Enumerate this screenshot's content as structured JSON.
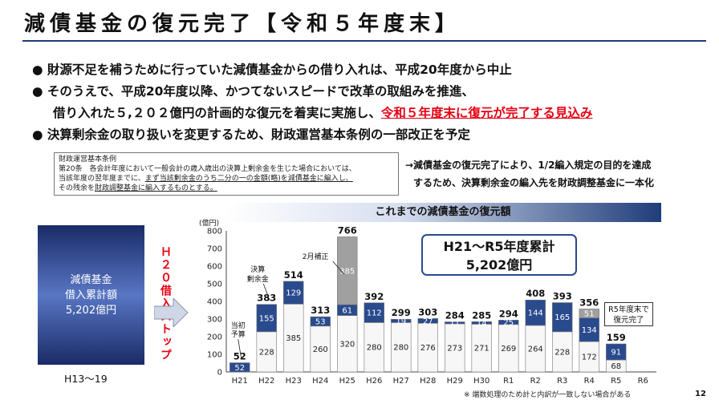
{
  "title": "減債基金の復元完了【令和５年度末】",
  "bullets": {
    "line1": "● 財源不足を補うために行っていた減債基金からの借り入れは、平成20年度から中止",
    "line2": "● そのうえで、平成20年度以降、かつてないスピードで改革の取組みを推進、",
    "line3_plain": "借り入れた５,２０２億円の計画的な復元を着実に実施し、",
    "line3_red": "令和５年度末に復元が完了する見込み",
    "line4": "● 決算剰余金の取り扱いを変更するため、財政運営基本条例の一部改正を予定"
  },
  "law_box": {
    "l1": "財政運営基本条例",
    "l2": "第20条　各会計年度において一般会計の歳入歳出の決算上剰余金を生じた場合においては、",
    "l3a": "当該年度の翌年度までに、",
    "l3b": "まず当該剰余金のうち二分の一の金額(略)を減債基金に編入し、",
    "l4a": "その残余を",
    "l4b": "財政調整基金に編入するものとする。"
  },
  "right_note": {
    "l1": "→減債基金の復元完了により、1/2編入規定の目的を達成",
    "l2": "するため、決算剰余金の編入先を財政調整基金に一本化"
  },
  "chart_header": "これまでの減債基金の復元額",
  "left_box": {
    "l1": "減債基金",
    "l2": "借入累計額",
    "l3": "5,202億円",
    "period": "H13～19"
  },
  "stop_label": "Ｈ２０借入ストップ",
  "sum_box": {
    "l1": "H21～R5年度累計",
    "l2": "5,202億円"
  },
  "r5_box": {
    "l1": "R5年度末で",
    "l2": "復元完了"
  },
  "footnote": "※ 端数処理のため計と内訳が一致しない場合がある",
  "page_number": "12",
  "colors": {
    "accent": "#2a4a8e",
    "dark": "#1f3d7a",
    "red": "#e60012",
    "gray": "#a0a0a0",
    "white_seg": "#f7f7f7"
  },
  "chart_data": {
    "type": "bar",
    "stacked": true,
    "unit_label": "(億円)",
    "ylim": [
      0,
      800
    ],
    "yticks": [
      0,
      100,
      200,
      300,
      400,
      500,
      600,
      700,
      800
    ],
    "grid": false,
    "categories": [
      "H21",
      "H22",
      "H23",
      "H24",
      "H25",
      "H26",
      "H27",
      "H28",
      "H29",
      "H30",
      "R1",
      "R2",
      "R3",
      "R4",
      "R5",
      "R6"
    ],
    "segments": [
      [
        {
          "v": 52,
          "c": "blue"
        }
      ],
      [
        {
          "v": 228,
          "c": "white"
        },
        {
          "v": 155,
          "c": "blue"
        }
      ],
      [
        {
          "v": 385,
          "c": "white"
        },
        {
          "v": 129,
          "c": "blue"
        }
      ],
      [
        {
          "v": 260,
          "c": "white"
        },
        {
          "v": 53,
          "c": "blue"
        }
      ],
      [
        {
          "v": 320,
          "c": "white"
        },
        {
          "v": 61,
          "c": "blue"
        },
        {
          "v": 385,
          "c": "gray"
        }
      ],
      [
        {
          "v": 280,
          "c": "white"
        },
        {
          "v": 112,
          "c": "blue"
        }
      ],
      [
        {
          "v": 280,
          "c": "white"
        },
        {
          "v": 19,
          "c": "blue"
        }
      ],
      [
        {
          "v": 276,
          "c": "white"
        },
        {
          "v": 27,
          "c": "blue"
        }
      ],
      [
        {
          "v": 273,
          "c": "white"
        },
        {
          "v": 11,
          "c": "blue"
        }
      ],
      [
        {
          "v": 271,
          "c": "white"
        },
        {
          "v": 14,
          "c": "blue"
        }
      ],
      [
        {
          "v": 269,
          "c": "white"
        },
        {
          "v": 25,
          "c": "blue"
        }
      ],
      [
        {
          "v": 264,
          "c": "white"
        },
        {
          "v": 144,
          "c": "blue"
        }
      ],
      [
        {
          "v": 228,
          "c": "white"
        },
        {
          "v": 165,
          "c": "blue"
        }
      ],
      [
        {
          "v": 172,
          "c": "white"
        },
        {
          "v": 134,
          "c": "blue"
        },
        {
          "v": 51,
          "c": "gray"
        }
      ],
      [
        {
          "v": 68,
          "c": "white"
        },
        {
          "v": 91,
          "c": "blue"
        }
      ],
      []
    ],
    "totals": [
      "52",
      "383",
      "514",
      "313",
      "766",
      "392",
      "299",
      "303",
      "284",
      "285",
      "294",
      "408",
      "393",
      "356",
      "159",
      ""
    ],
    "annotations": [
      {
        "text": "当初予算",
        "category": "H21"
      },
      {
        "text": "決算剰余金",
        "category": "H22"
      },
      {
        "text": "2月補正",
        "category": "H25"
      }
    ]
  }
}
